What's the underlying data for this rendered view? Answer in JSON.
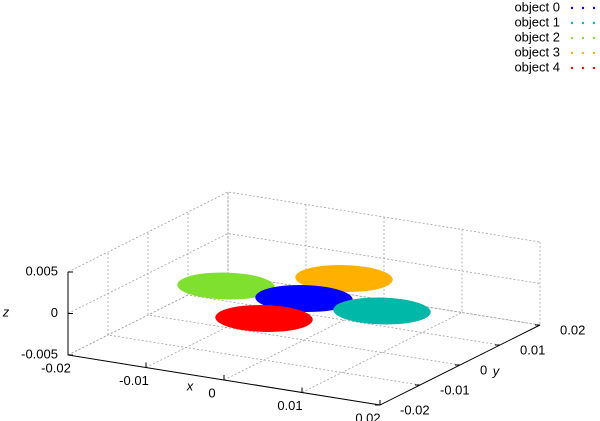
{
  "chart_data": {
    "type": "scatter3d",
    "xlabel": "x",
    "ylabel": "y",
    "zlabel": "z",
    "xlim": [
      -0.02,
      0.02
    ],
    "ylim": [
      -0.02,
      0.02
    ],
    "zlim": [
      -0.005,
      0.005
    ],
    "xticks": [
      -0.02,
      -0.01,
      0,
      0.01,
      0.02
    ],
    "yticks": [
      -0.02,
      -0.01,
      0,
      0.01,
      0.02
    ],
    "zticks": [
      -0.005,
      0,
      0.005
    ],
    "grid": true,
    "legend": "top-right",
    "radius": 0.0055,
    "series": [
      {
        "name": "object 0",
        "color": "#0000ff",
        "x": 0,
        "y": 0,
        "z": 0
      },
      {
        "name": "object 1",
        "color": "#00b8a8",
        "x": 0.01,
        "y": 0,
        "z": 0
      },
      {
        "name": "object 2",
        "color": "#80e030",
        "x": -0.01,
        "y": 0,
        "z": 0
      },
      {
        "name": "object 3",
        "color": "#ffb000",
        "x": 0,
        "y": 0.01,
        "z": 0
      },
      {
        "name": "object 4",
        "color": "#ff0000",
        "x": 0,
        "y": -0.01,
        "z": 0
      }
    ]
  }
}
